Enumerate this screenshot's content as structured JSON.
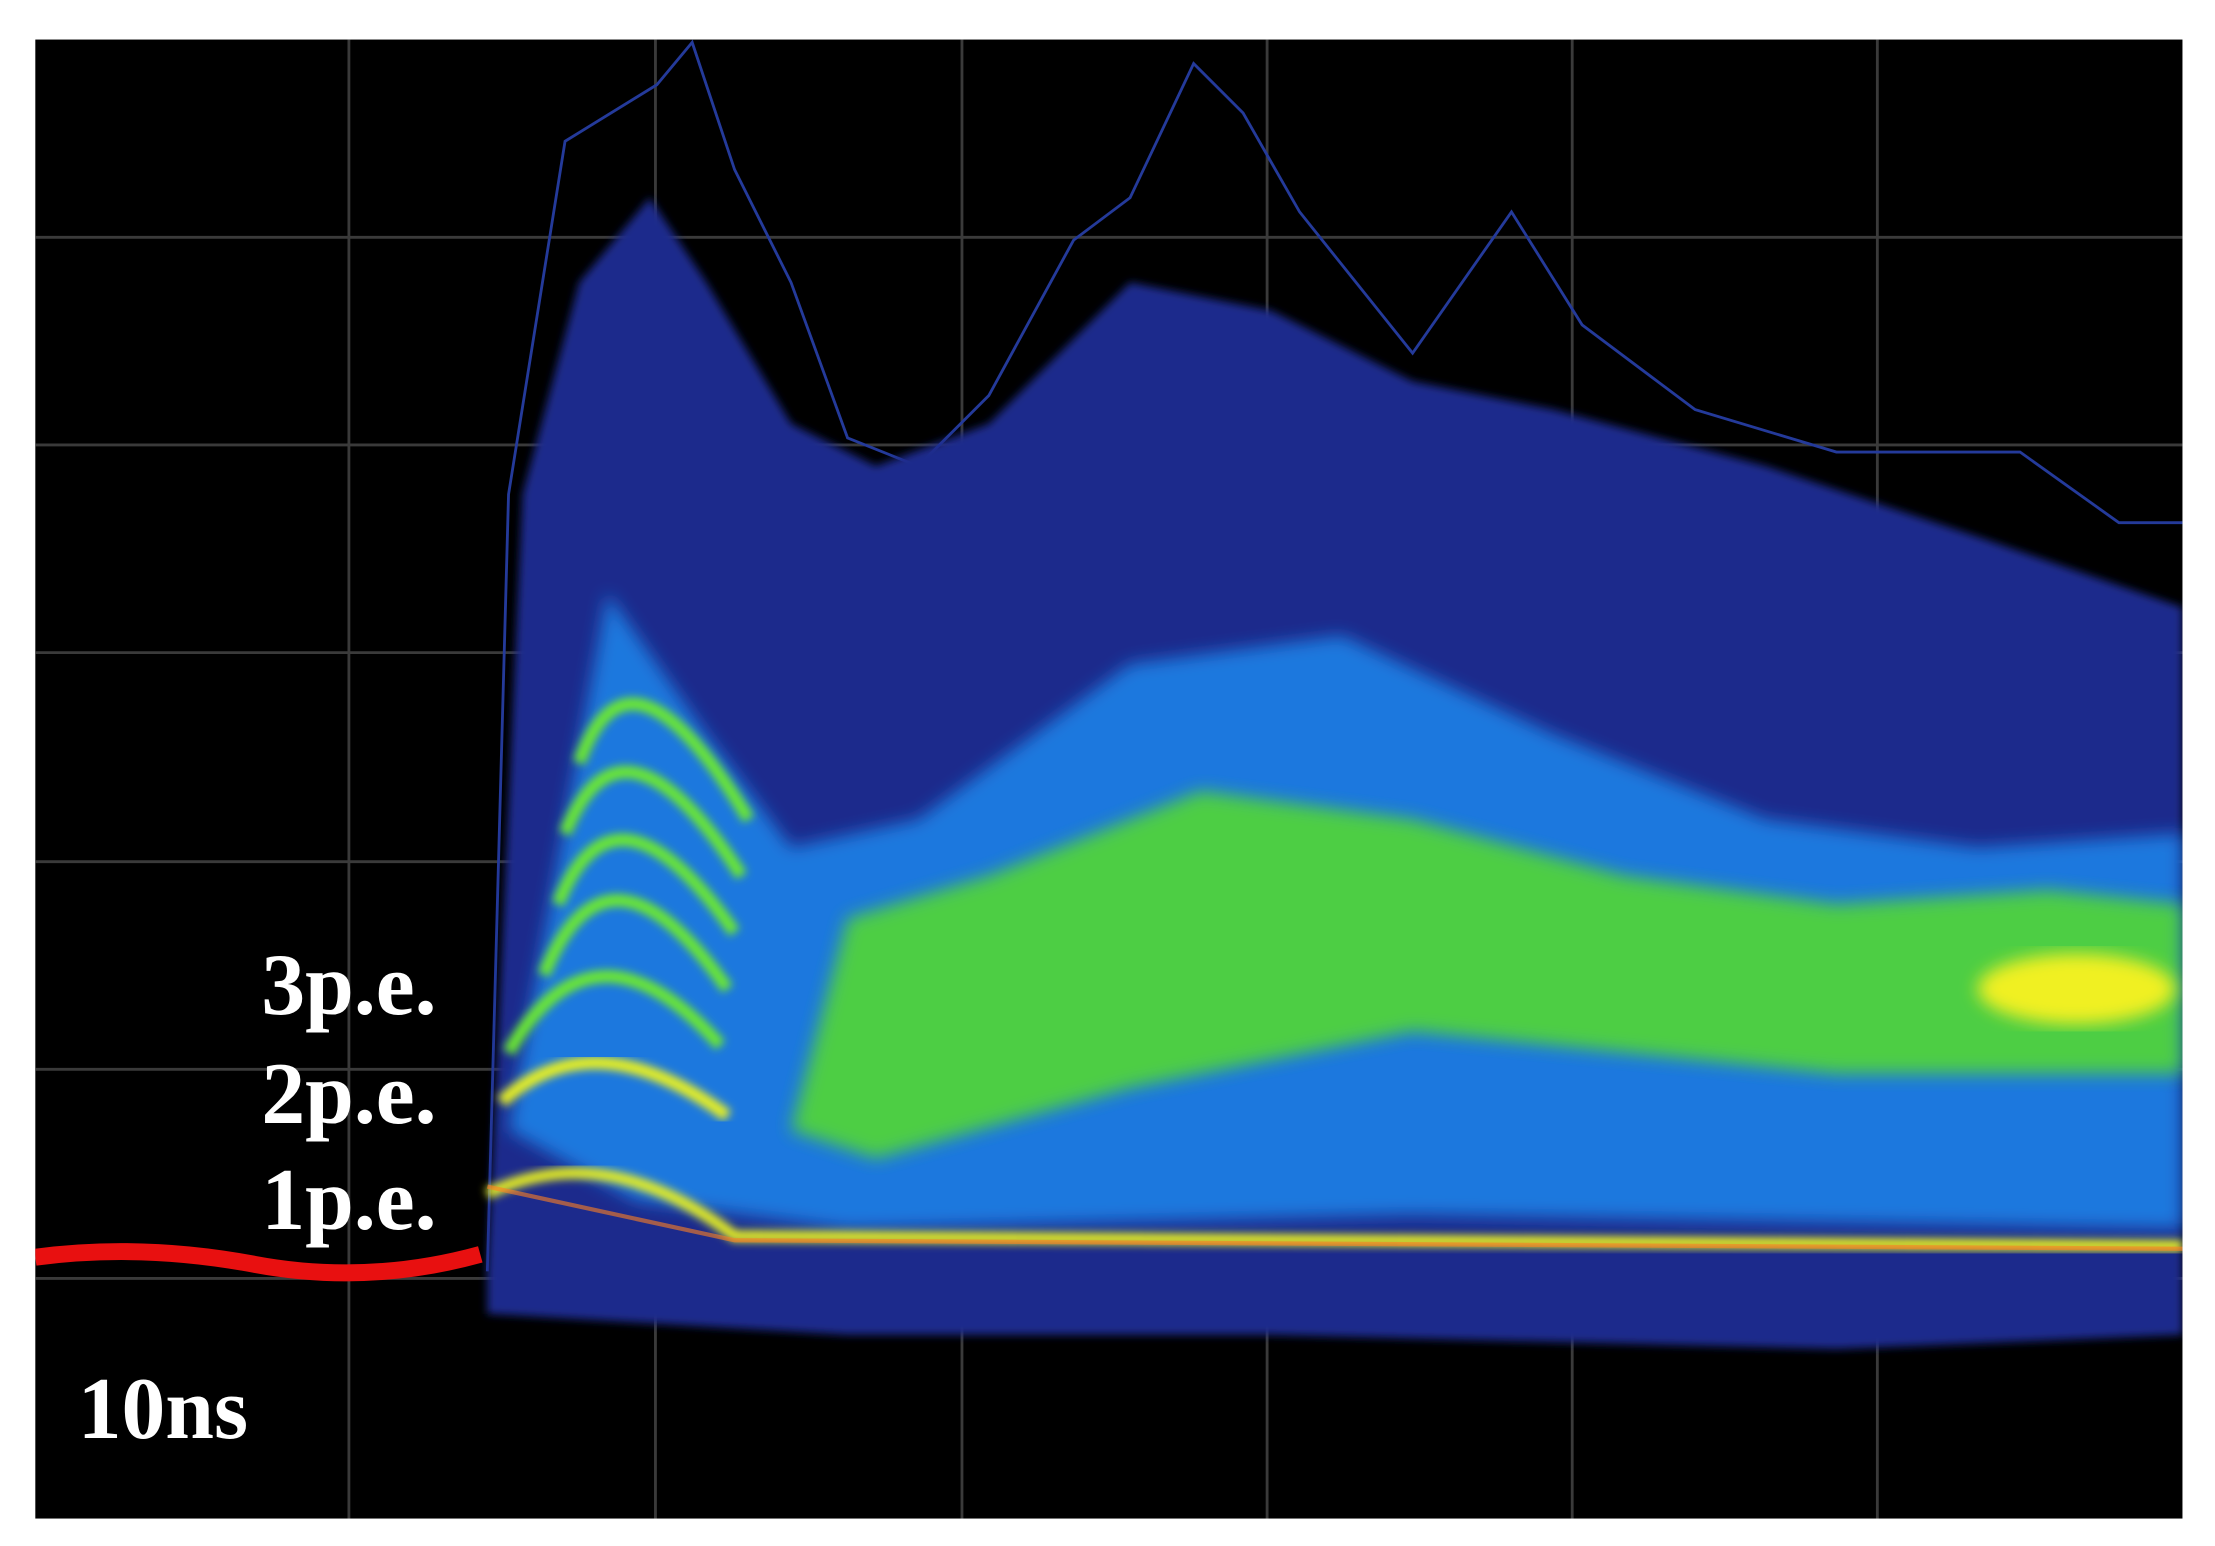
{
  "labels": {
    "pe3": "3p.e.",
    "pe2": "2p.e.",
    "pe1": "1p.e.",
    "timebase": "10ns"
  }
}
